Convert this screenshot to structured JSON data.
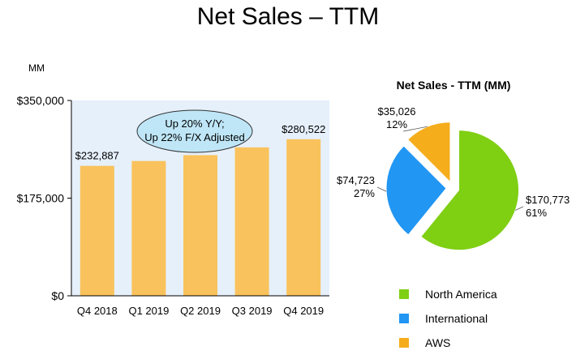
{
  "page": {
    "title": "Net Sales – TTM",
    "units": "MM"
  },
  "callout": {
    "line1": "Up 20% Y/Y;",
    "line2": "Up 22% F/X Adjusted"
  },
  "chart_data": [
    {
      "type": "bar",
      "categories": [
        "Q4 2018",
        "Q1 2019",
        "Q2 2019",
        "Q3 2019",
        "Q4 2019"
      ],
      "values": [
        232887,
        241549,
        252063,
        265981,
        280522
      ],
      "value_labels": [
        "$232,887",
        "",
        "",
        "",
        "$280,522"
      ],
      "ylim": [
        0,
        350000
      ],
      "yticks": [
        0,
        175000,
        350000
      ],
      "ytick_labels": [
        "$0",
        "$175,000",
        "$350,000"
      ],
      "ylabel": "MM",
      "grid": false,
      "colors": {
        "bar": "#f9c25c",
        "plot_bg": "#e6f0fb",
        "axis": "#000000"
      }
    },
    {
      "type": "pie",
      "title": "Net Sales - TTM (MM)",
      "labels": [
        "North America",
        "International",
        "AWS"
      ],
      "values": [
        170773,
        74723,
        35026
      ],
      "value_labels": [
        "$170,773",
        "$74,723",
        "$35,026"
      ],
      "percent_labels": [
        "61%",
        "27%",
        "12%"
      ],
      "colors": [
        "#7fcf13",
        "#2196f3",
        "#f5ad1b"
      ],
      "legend": "bottom"
    }
  ]
}
